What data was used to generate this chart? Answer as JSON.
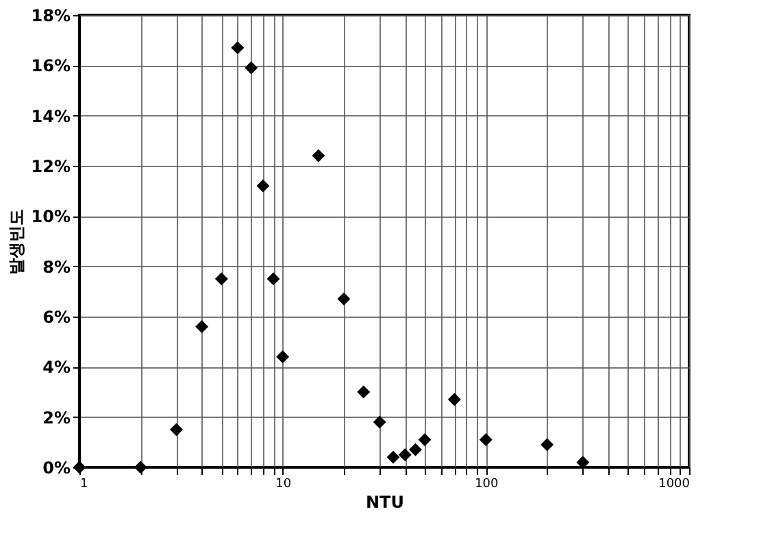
{
  "chart_data": {
    "type": "scatter",
    "xlabel": "NTU",
    "ylabel": "발생빈도",
    "x": [
      1,
      2,
      3,
      4,
      5,
      6,
      7,
      8,
      9,
      10,
      15,
      20,
      25,
      30,
      35,
      40,
      45,
      50,
      70,
      100,
      200,
      300
    ],
    "series": [
      {
        "color": "#000000",
        "values": [
          0,
          0,
          1.5,
          5.6,
          7.5,
          16.7,
          15.9,
          11.2,
          7.5,
          4.4,
          12.4,
          6.7,
          3.0,
          1.8,
          0.4,
          0.5,
          0.7,
          1.1,
          2.7,
          1.1,
          0.9,
          0.2
        ]
      }
    ],
    "marker": "diamond",
    "log": "x",
    "grid": true,
    "xlim": [
      1,
      1000
    ],
    "xticks": [
      1,
      {
        "value": 2,
        "label": null
      },
      {
        "value": 3,
        "label": null
      },
      {
        "value": 4,
        "label": null
      },
      {
        "value": 5,
        "label": null
      },
      {
        "value": 6,
        "label": null
      },
      {
        "value": 7,
        "label": null
      },
      {
        "value": 8,
        "label": null
      },
      {
        "value": 9,
        "label": null
      },
      10,
      {
        "value": 20,
        "label": null
      },
      {
        "value": 30,
        "label": null
      },
      {
        "value": 40,
        "label": null
      },
      {
        "value": 50,
        "label": null
      },
      {
        "value": 60,
        "label": null
      },
      {
        "value": 70,
        "label": null
      },
      {
        "value": 80,
        "label": null
      },
      {
        "value": 90,
        "label": null
      },
      100,
      {
        "value": 200,
        "label": null
      },
      {
        "value": 300,
        "label": null
      },
      {
        "value": 400,
        "label": null
      },
      {
        "value": 500,
        "label": null
      },
      {
        "value": 600,
        "label": null
      },
      {
        "value": 700,
        "label": null
      },
      {
        "value": 800,
        "label": null
      },
      {
        "value": 900,
        "label": null
      },
      1000
    ],
    "ylim": [
      0,
      18
    ],
    "yticks": [
      {
        "value": 0,
        "label": "0%"
      },
      {
        "value": 2,
        "label": "2%"
      },
      {
        "value": 4,
        "label": "4%"
      },
      {
        "value": 6,
        "label": "6%"
      },
      {
        "value": 8,
        "label": "8%"
      },
      {
        "value": 10,
        "label": "10%"
      },
      {
        "value": 12,
        "label": "12%"
      },
      {
        "value": 14,
        "label": "14%"
      },
      {
        "value": 16,
        "label": "16%"
      },
      {
        "value": 18,
        "label": "18%"
      }
    ]
  }
}
